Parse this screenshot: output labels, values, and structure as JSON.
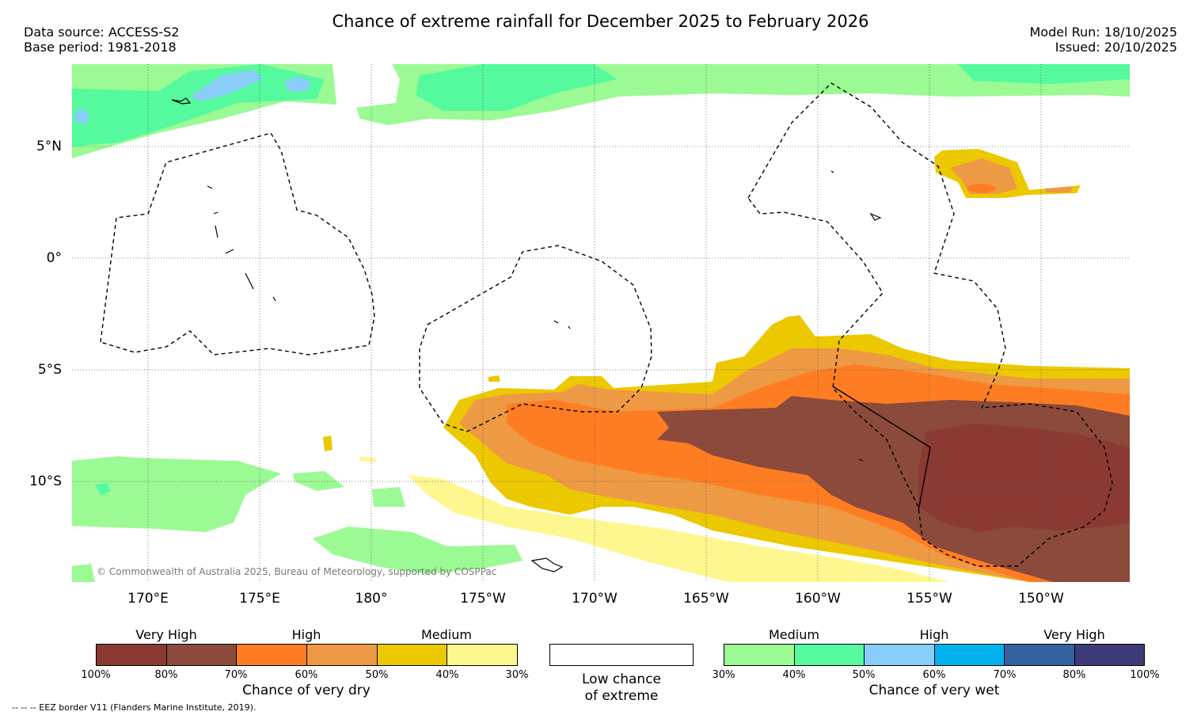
{
  "header": {
    "title": "Chance of extreme rainfall for December 2025 to February 2026",
    "data_source": "Data source: ACCESS-S2",
    "base_period": "Base period: 1981-2018",
    "model_run": "Model Run: 18/10/2025",
    "issued": "Issued: 20/10/2025"
  },
  "map": {
    "lat_labels": [
      "5°N",
      "0°",
      "5°S",
      "10°S"
    ],
    "lon_labels": [
      "170°E",
      "175°E",
      "180°",
      "175°W",
      "170°W",
      "165°W",
      "160°W",
      "155°W",
      "150°W"
    ],
    "copyright": "© Commonwealth of Australia 2025, Bureau of Meteorology, supported by COSPPac"
  },
  "legend": {
    "dry": {
      "groups": [
        "Very High",
        "High",
        "Medium"
      ],
      "colors": [
        "#8b3a33",
        "#8b4a3b",
        "#ff7d22",
        "#ee9944",
        "#ecc800",
        "#fef68f"
      ],
      "ticks": [
        "100%",
        "80%",
        "70%",
        "60%",
        "50%",
        "40%",
        "30%"
      ],
      "caption": "Chance of very dry"
    },
    "low": {
      "line1": "Low chance",
      "line2": "of extreme"
    },
    "wet": {
      "groups": [
        "Medium",
        "High",
        "Very High"
      ],
      "colors": [
        "#9bfa93",
        "#55f99e",
        "#88ccf9",
        "#00b1ee",
        "#3560a0",
        "#3d3b78"
      ],
      "ticks": [
        "30%",
        "40%",
        "50%",
        "60%",
        "70%",
        "80%",
        "100%"
      ],
      "caption": "Chance of very wet"
    }
  },
  "footnote": "-- -- -- EEZ border V11 (Flanders Marine Institute, 2019)."
}
